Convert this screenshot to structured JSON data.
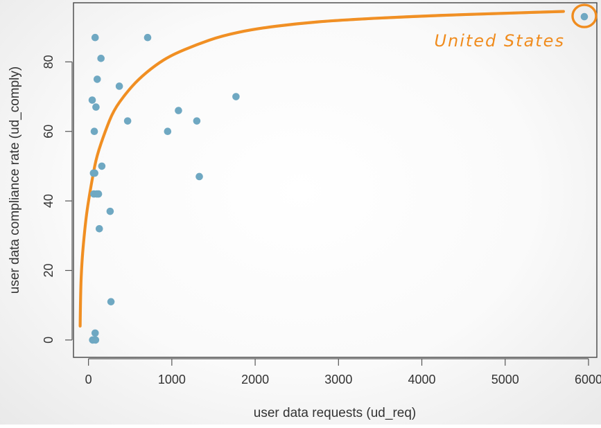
{
  "chart_data": {
    "type": "scatter",
    "title": "",
    "xlabel": "user data requests (ud_req)",
    "ylabel": "user data compliance rate (ud_comply)",
    "xlim": [
      -180,
      6100
    ],
    "ylim": [
      -5,
      97
    ],
    "x_ticks": [
      0,
      1000,
      2000,
      3000,
      4000,
      5000,
      6000
    ],
    "y_ticks": [
      0,
      20,
      40,
      60,
      80
    ],
    "grid": false,
    "legend": "none",
    "point_color": "#6fa8c2",
    "curve_color": "#f08c1e",
    "points": [
      {
        "x": 45,
        "y": 69
      },
      {
        "x": 50,
        "y": 0
      },
      {
        "x": 60,
        "y": 48
      },
      {
        "x": 65,
        "y": 42
      },
      {
        "x": 70,
        "y": 60
      },
      {
        "x": 75,
        "y": 48
      },
      {
        "x": 80,
        "y": 87
      },
      {
        "x": 80,
        "y": 2
      },
      {
        "x": 85,
        "y": 0
      },
      {
        "x": 90,
        "y": 67
      },
      {
        "x": 100,
        "y": 42
      },
      {
        "x": 105,
        "y": 75
      },
      {
        "x": 120,
        "y": 42
      },
      {
        "x": 130,
        "y": 32
      },
      {
        "x": 150,
        "y": 81
      },
      {
        "x": 160,
        "y": 50
      },
      {
        "x": 260,
        "y": 37
      },
      {
        "x": 270,
        "y": 11
      },
      {
        "x": 370,
        "y": 73
      },
      {
        "x": 470,
        "y": 63
      },
      {
        "x": 710,
        "y": 87
      },
      {
        "x": 950,
        "y": 60
      },
      {
        "x": 1080,
        "y": 66
      },
      {
        "x": 1300,
        "y": 63
      },
      {
        "x": 1330,
        "y": 47
      },
      {
        "x": 1770,
        "y": 70
      },
      {
        "x": 5950,
        "y": 93
      }
    ],
    "trend_curve": [
      [
        -100,
        4
      ],
      [
        -95,
        14
      ],
      [
        -80,
        22
      ],
      [
        -60,
        28
      ],
      [
        -30,
        35
      ],
      [
        0,
        40
      ],
      [
        50,
        47
      ],
      [
        100,
        53
      ],
      [
        200,
        60
      ],
      [
        300,
        66
      ],
      [
        450,
        71
      ],
      [
        600,
        75
      ],
      [
        800,
        79
      ],
      [
        1000,
        82
      ],
      [
        1300,
        85
      ],
      [
        1600,
        87.5
      ],
      [
        2000,
        89.5
      ],
      [
        2500,
        91
      ],
      [
        3000,
        92
      ],
      [
        4000,
        93.2
      ],
      [
        5000,
        94
      ],
      [
        5700,
        94.5
      ]
    ],
    "annotations": [
      {
        "text": "United States",
        "x": 5950,
        "y": 93,
        "color": "#f08c1e"
      }
    ]
  }
}
